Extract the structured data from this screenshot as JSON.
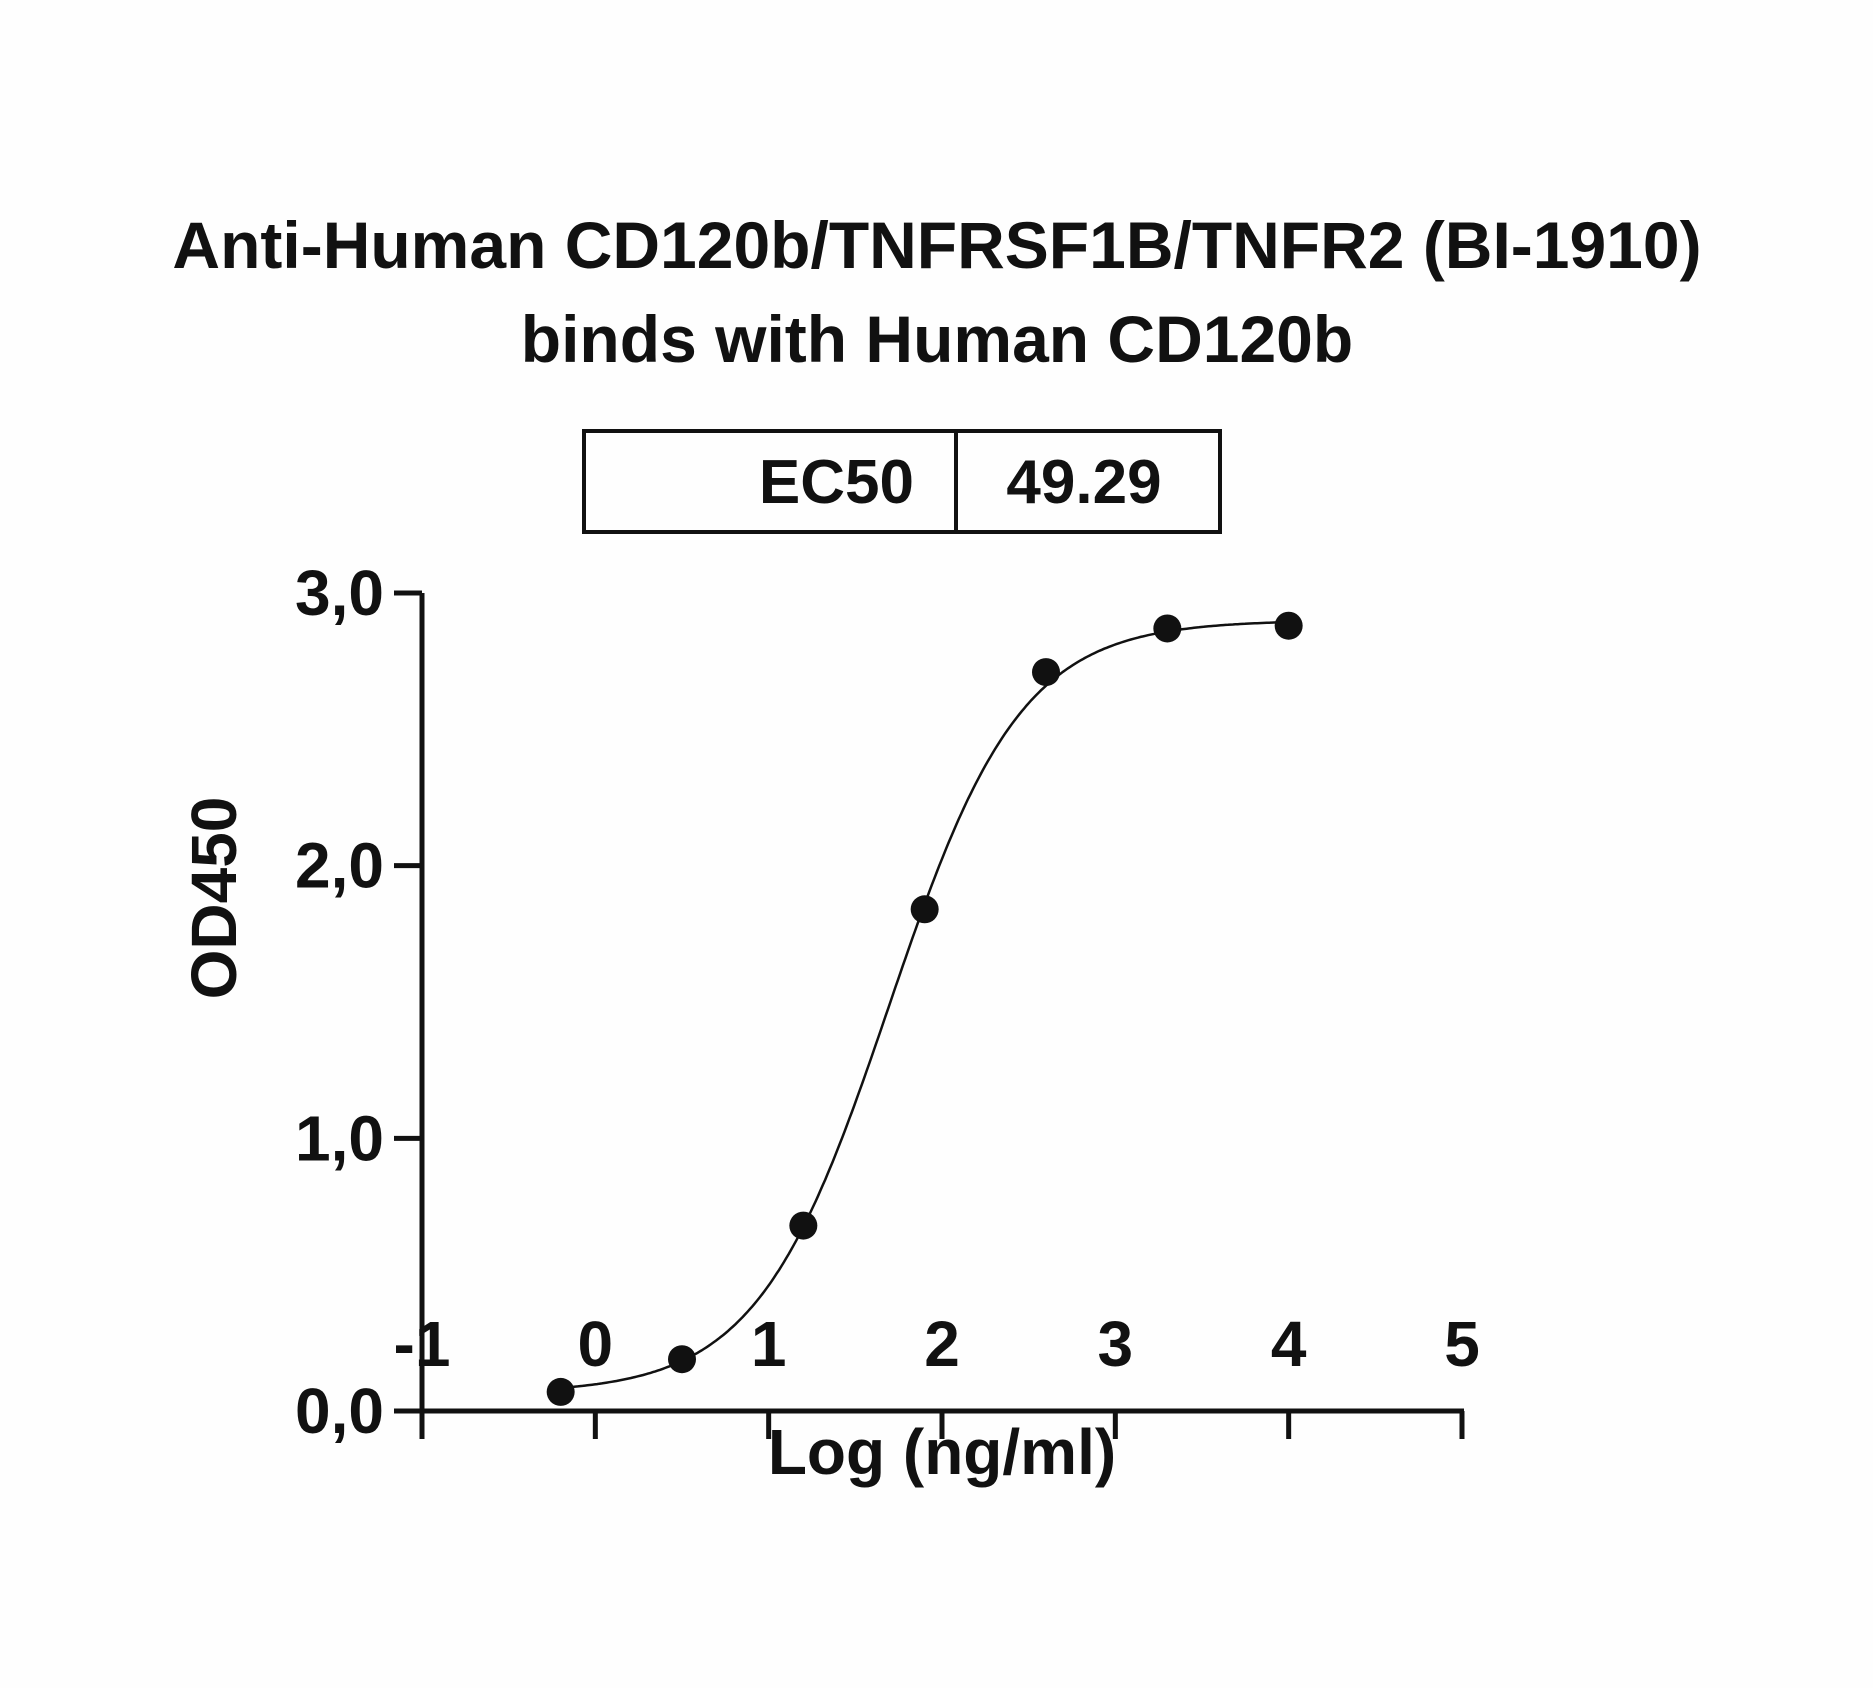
{
  "chart_data": {
    "type": "scatter",
    "title": [
      "Anti-Human CD120b/TNFRSF1B/TNFR2 (BI-1910)",
      "binds with Human CD120b"
    ],
    "xlabel": "Log (ng/ml)",
    "ylabel": "OD450",
    "xlim": [
      -1,
      5
    ],
    "ylim": [
      0,
      3
    ],
    "x_ticks": [
      "-1",
      "0",
      "1",
      "2",
      "3",
      "4",
      "5"
    ],
    "y_ticks": [
      "0,0",
      "1,0",
      "2,0",
      "3,0"
    ],
    "grid": false,
    "legend": "none",
    "series": [
      {
        "x": [
          -0.2,
          0.5,
          1.2,
          1.9,
          2.6,
          3.3,
          4.0
        ],
        "y": [
          0.07,
          0.19,
          0.68,
          1.84,
          2.71,
          2.87,
          2.88
        ],
        "fit": "four-parameter logistic curve"
      }
    ],
    "ec50_table": {
      "label": "EC50",
      "value": "49.29"
    },
    "colors": {
      "marks": "#111111",
      "background": "#fefefe"
    }
  }
}
